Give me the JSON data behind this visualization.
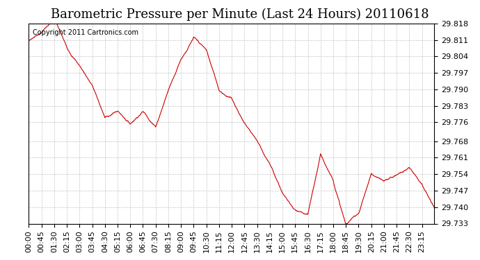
{
  "title": "Barometric Pressure per Minute (Last 24 Hours) 20110618",
  "copyright_text": "Copyright 2011 Cartronics.com",
  "line_color": "#cc0000",
  "background_color": "#ffffff",
  "plot_bg_color": "#ffffff",
  "grid_color": "#aaaaaa",
  "ylim": [
    29.733,
    29.818
  ],
  "yticks": [
    29.818,
    29.811,
    29.804,
    29.797,
    29.79,
    29.783,
    29.776,
    29.768,
    29.761,
    29.754,
    29.747,
    29.74,
    29.733
  ],
  "xtick_labels": [
    "00:00",
    "00:45",
    "01:30",
    "02:15",
    "03:00",
    "03:45",
    "04:30",
    "05:15",
    "06:00",
    "06:45",
    "07:30",
    "08:15",
    "09:00",
    "09:45",
    "10:30",
    "11:15",
    "12:00",
    "12:45",
    "13:30",
    "14:15",
    "15:00",
    "15:45",
    "16:30",
    "17:15",
    "18:00",
    "18:45",
    "19:30",
    "20:15",
    "21:00",
    "21:45",
    "22:30",
    "23:15"
  ],
  "title_fontsize": 13,
  "tick_fontsize": 8,
  "copyright_fontsize": 7
}
